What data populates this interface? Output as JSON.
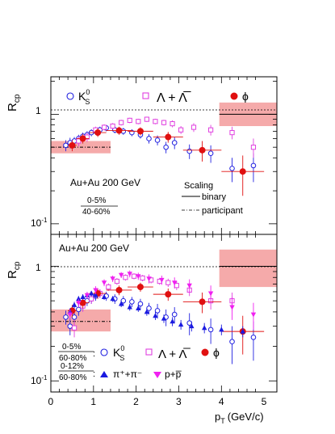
{
  "chart_data": [
    {
      "type": "scatter",
      "ylabel": "R",
      "ylabel_sub": "cp",
      "y_scale": "log",
      "ylim": [
        0.08,
        2.2
      ],
      "xlim": [
        0,
        5.3
      ],
      "y_tick_labels": [
        {
          "value": 1,
          "base": "1",
          "exp": ""
        },
        {
          "value": 0.1,
          "base": "10",
          "exp": "-1"
        }
      ],
      "system_label": "Au+Au 200 GeV",
      "centrality_label": {
        "num": "0-5%",
        "den": "40-60%"
      },
      "legend": [
        {
          "symbol": "circle-open",
          "color": "#2020e0",
          "label": "K",
          "sup": "0",
          "sub": "S"
        },
        {
          "symbol": "square-open",
          "color": "#e040e0",
          "label": "Λ + Λ̅"
        },
        {
          "symbol": "circle-filled",
          "color": "#e01010",
          "label": "ϕ"
        }
      ],
      "scaling_legend": {
        "title": "Scaling",
        "entries": [
          {
            "style": "solid",
            "label": "binary"
          },
          {
            "style": "dashdot",
            "label": "participant"
          }
        ]
      },
      "scaling_bands": [
        {
          "x": [
            0.0,
            1.4
          ],
          "y_low": 0.44,
          "y_high": 0.57,
          "line_y": 0.5,
          "style": "dashdot",
          "color": "#f5aaaa"
        },
        {
          "x": [
            3.95,
            5.3
          ],
          "y_low": 0.78,
          "y_high": 1.28,
          "line_y": 1.0,
          "style": "solid",
          "color": "#f5aaaa"
        }
      ],
      "series": [
        {
          "name": "K0S",
          "marker": "circle-open",
          "color": "#2020e0",
          "points": [
            {
              "x": 0.35,
              "y": 0.52,
              "err": 0.06
            },
            {
              "x": 0.45,
              "y": 0.55,
              "err": 0.06
            },
            {
              "x": 0.55,
              "y": 0.57,
              "err": 0.05
            },
            {
              "x": 0.65,
              "y": 0.6,
              "err": 0.05
            },
            {
              "x": 0.75,
              "y": 0.63,
              "err": 0.05
            },
            {
              "x": 0.85,
              "y": 0.65,
              "err": 0.05
            },
            {
              "x": 0.95,
              "y": 0.68,
              "err": 0.05
            },
            {
              "x": 1.05,
              "y": 0.7,
              "err": 0.05
            },
            {
              "x": 1.15,
              "y": 0.72,
              "err": 0.05
            },
            {
              "x": 1.3,
              "y": 0.75,
              "err": 0.05
            },
            {
              "x": 1.5,
              "y": 0.72,
              "err": 0.05
            },
            {
              "x": 1.7,
              "y": 0.7,
              "err": 0.05
            },
            {
              "x": 1.9,
              "y": 0.68,
              "err": 0.05
            },
            {
              "x": 2.1,
              "y": 0.65,
              "err": 0.05
            },
            {
              "x": 2.3,
              "y": 0.6,
              "err": 0.06
            },
            {
              "x": 2.5,
              "y": 0.58,
              "err": 0.06
            },
            {
              "x": 2.7,
              "y": 0.5,
              "err": 0.06
            },
            {
              "x": 2.9,
              "y": 0.55,
              "err": 0.07
            },
            {
              "x": 3.25,
              "y": 0.46,
              "err": 0.07
            },
            {
              "x": 3.75,
              "y": 0.44,
              "err": 0.08
            },
            {
              "x": 4.25,
              "y": 0.32,
              "err": 0.08
            },
            {
              "x": 4.75,
              "y": 0.34,
              "err": 0.1
            }
          ]
        },
        {
          "name": "Lambda",
          "marker": "square-open",
          "color": "#e040e0",
          "points": [
            {
              "x": 0.65,
              "y": 0.57,
              "err": 0.06
            },
            {
              "x": 0.85,
              "y": 0.62,
              "err": 0.06
            },
            {
              "x": 1.05,
              "y": 0.72,
              "err": 0.05
            },
            {
              "x": 1.25,
              "y": 0.76,
              "err": 0.05
            },
            {
              "x": 1.45,
              "y": 0.78,
              "err": 0.05
            },
            {
              "x": 1.65,
              "y": 0.84,
              "err": 0.05
            },
            {
              "x": 1.85,
              "y": 0.88,
              "err": 0.05
            },
            {
              "x": 2.05,
              "y": 0.86,
              "err": 0.05
            },
            {
              "x": 2.25,
              "y": 0.9,
              "err": 0.05
            },
            {
              "x": 2.45,
              "y": 0.86,
              "err": 0.05
            },
            {
              "x": 2.65,
              "y": 0.84,
              "err": 0.05
            },
            {
              "x": 2.85,
              "y": 0.82,
              "err": 0.06
            },
            {
              "x": 3.05,
              "y": 0.72,
              "err": 0.06
            },
            {
              "x": 3.35,
              "y": 0.76,
              "err": 0.07
            },
            {
              "x": 3.75,
              "y": 0.72,
              "err": 0.08
            },
            {
              "x": 4.25,
              "y": 0.68,
              "err": 0.09
            },
            {
              "x": 4.75,
              "y": 0.5,
              "err": 0.1
            }
          ]
        },
        {
          "name": "phi",
          "marker": "circle-filled",
          "color": "#e01010",
          "points": [
            {
              "x": 0.5,
              "y": 0.52,
              "xerr": 0.1,
              "err": 0.06
            },
            {
              "x": 0.75,
              "y": 0.6,
              "xerr": 0.15,
              "err": 0.06
            },
            {
              "x": 1.1,
              "y": 0.68,
              "xerr": 0.2,
              "err": 0.06
            },
            {
              "x": 1.6,
              "y": 0.71,
              "xerr": 0.3,
              "err": 0.06
            },
            {
              "x": 2.1,
              "y": 0.7,
              "xerr": 0.3,
              "err": 0.06
            },
            {
              "x": 2.75,
              "y": 0.62,
              "xerr": 0.35,
              "err": 0.07
            },
            {
              "x": 3.55,
              "y": 0.47,
              "xerr": 0.45,
              "err": 0.1
            },
            {
              "x": 4.5,
              "y": 0.3,
              "xerr": 0.5,
              "err": 0.12
            }
          ]
        }
      ]
    },
    {
      "type": "scatter",
      "xlabel": "p",
      "xlabel_sub": "T",
      "xlabel_unit": "(GeV/c)",
      "ylabel": "R",
      "ylabel_sub": "cp",
      "y_scale": "log",
      "ylim": [
        0.08,
        1.9
      ],
      "xlim": [
        0,
        5.3
      ],
      "x_ticks": [
        0,
        1,
        2,
        3,
        4,
        5
      ],
      "y_tick_labels": [
        {
          "value": 1,
          "base": "1",
          "exp": ""
        },
        {
          "value": 0.1,
          "base": "10",
          "exp": "-1"
        }
      ],
      "system_label": "Au+Au 200 GeV",
      "legend_rows": [
        {
          "centrality": {
            "num": "0-5%",
            "den": "60-80%"
          },
          "entries": [
            {
              "symbol": "circle-open",
              "color": "#2020e0",
              "label": "K",
              "sup": "0",
              "sub": "S"
            },
            {
              "symbol": "square-open",
              "color": "#e040e0",
              "label": "Λ + Λ̅"
            },
            {
              "symbol": "circle-filled",
              "color": "#e01010",
              "label": "ϕ"
            }
          ]
        },
        {
          "centrality": {
            "num": "0-12%",
            "den": "60-80%"
          },
          "entries": [
            {
              "symbol": "triangle-up",
              "color": "#1a1ae0",
              "label": "π⁺+π⁻"
            },
            {
              "symbol": "triangle-down",
              "color": "#f020f0",
              "label": "p+p̅"
            }
          ]
        }
      ],
      "scaling_bands": [
        {
          "x": [
            0.0,
            1.4
          ],
          "y_low": 0.27,
          "y_high": 0.42,
          "line_y": 0.33,
          "style": "dashdot",
          "color": "#f5aaaa"
        },
        {
          "x": [
            3.95,
            5.3
          ],
          "y_low": 0.66,
          "y_high": 1.4,
          "line_y": 1.0,
          "style": "solid",
          "color": "#f5aaaa"
        }
      ],
      "series": [
        {
          "name": "K0S",
          "marker": "circle-open",
          "color": "#2020e0",
          "points": [
            {
              "x": 0.35,
              "y": 0.36,
              "err": 0.05
            },
            {
              "x": 0.45,
              "y": 0.3,
              "err": 0.05
            },
            {
              "x": 0.55,
              "y": 0.36,
              "err": 0.05
            },
            {
              "x": 0.65,
              "y": 0.42,
              "err": 0.05
            },
            {
              "x": 0.75,
              "y": 0.46,
              "err": 0.05
            },
            {
              "x": 0.85,
              "y": 0.5,
              "err": 0.05
            },
            {
              "x": 0.95,
              "y": 0.52,
              "err": 0.05
            },
            {
              "x": 1.05,
              "y": 0.55,
              "err": 0.05
            },
            {
              "x": 1.15,
              "y": 0.58,
              "err": 0.05
            },
            {
              "x": 1.3,
              "y": 0.55,
              "err": 0.05
            },
            {
              "x": 1.5,
              "y": 0.52,
              "err": 0.05
            },
            {
              "x": 1.7,
              "y": 0.5,
              "err": 0.05
            },
            {
              "x": 1.9,
              "y": 0.49,
              "err": 0.05
            },
            {
              "x": 2.1,
              "y": 0.47,
              "err": 0.05
            },
            {
              "x": 2.3,
              "y": 0.43,
              "err": 0.05
            },
            {
              "x": 2.5,
              "y": 0.41,
              "err": 0.06
            },
            {
              "x": 2.7,
              "y": 0.36,
              "err": 0.06
            },
            {
              "x": 2.9,
              "y": 0.38,
              "err": 0.06
            },
            {
              "x": 3.25,
              "y": 0.32,
              "err": 0.07
            },
            {
              "x": 3.75,
              "y": 0.28,
              "err": 0.07
            },
            {
              "x": 4.25,
              "y": 0.22,
              "err": 0.08
            },
            {
              "x": 4.75,
              "y": 0.24,
              "err": 0.09
            }
          ]
        },
        {
          "name": "Lambda",
          "marker": "square-open",
          "color": "#e040e0",
          "points": [
            {
              "x": 0.55,
              "y": 0.29,
              "err": 0.05
            },
            {
              "x": 0.75,
              "y": 0.45,
              "err": 0.05
            },
            {
              "x": 0.95,
              "y": 0.52,
              "err": 0.05
            },
            {
              "x": 1.15,
              "y": 0.58,
              "err": 0.05
            },
            {
              "x": 1.35,
              "y": 0.66,
              "err": 0.05
            },
            {
              "x": 1.55,
              "y": 0.74,
              "err": 0.05
            },
            {
              "x": 1.75,
              "y": 0.8,
              "err": 0.05
            },
            {
              "x": 1.95,
              "y": 0.82,
              "err": 0.05
            },
            {
              "x": 2.15,
              "y": 0.79,
              "err": 0.05
            },
            {
              "x": 2.35,
              "y": 0.76,
              "err": 0.05
            },
            {
              "x": 2.55,
              "y": 0.74,
              "err": 0.05
            },
            {
              "x": 2.75,
              "y": 0.72,
              "err": 0.06
            },
            {
              "x": 2.95,
              "y": 0.68,
              "err": 0.06
            },
            {
              "x": 3.25,
              "y": 0.62,
              "err": 0.07
            },
            {
              "x": 3.75,
              "y": 0.5,
              "err": 0.08
            },
            {
              "x": 4.25,
              "y": 0.5,
              "err": 0.09
            }
          ]
        },
        {
          "name": "phi",
          "marker": "circle-filled",
          "color": "#e01010",
          "points": [
            {
              "x": 0.5,
              "y": 0.41,
              "xerr": 0.1,
              "err": 0.05
            },
            {
              "x": 0.75,
              "y": 0.48,
              "xerr": 0.15,
              "err": 0.05
            },
            {
              "x": 1.1,
              "y": 0.58,
              "xerr": 0.2,
              "err": 0.06
            },
            {
              "x": 1.6,
              "y": 0.62,
              "xerr": 0.3,
              "err": 0.06
            },
            {
              "x": 2.1,
              "y": 0.66,
              "xerr": 0.3,
              "err": 0.06
            },
            {
              "x": 2.75,
              "y": 0.57,
              "xerr": 0.35,
              "err": 0.07
            },
            {
              "x": 3.55,
              "y": 0.49,
              "xerr": 0.45,
              "err": 0.1
            },
            {
              "x": 4.5,
              "y": 0.27,
              "xerr": 0.5,
              "err": 0.1
            }
          ]
        },
        {
          "name": "pi",
          "marker": "triangle-up",
          "color": "#1a1ae0",
          "points": [
            {
              "x": 0.45,
              "y": 0.4,
              "err": 0.03
            },
            {
              "x": 0.55,
              "y": 0.46,
              "err": 0.03
            },
            {
              "x": 0.65,
              "y": 0.52,
              "err": 0.03
            },
            {
              "x": 0.75,
              "y": 0.54,
              "err": 0.03
            },
            {
              "x": 0.85,
              "y": 0.56,
              "err": 0.03
            },
            {
              "x": 0.95,
              "y": 0.58,
              "err": 0.03
            },
            {
              "x": 1.05,
              "y": 0.56,
              "err": 0.03
            },
            {
              "x": 1.25,
              "y": 0.54,
              "err": 0.03
            },
            {
              "x": 1.45,
              "y": 0.52,
              "err": 0.03
            },
            {
              "x": 1.65,
              "y": 0.47,
              "err": 0.03
            },
            {
              "x": 1.85,
              "y": 0.44,
              "err": 0.03
            },
            {
              "x": 2.05,
              "y": 0.43,
              "err": 0.03
            },
            {
              "x": 2.25,
              "y": 0.4,
              "err": 0.03
            },
            {
              "x": 2.45,
              "y": 0.37,
              "err": 0.03
            },
            {
              "x": 2.65,
              "y": 0.35,
              "err": 0.03
            },
            {
              "x": 2.85,
              "y": 0.33,
              "err": 0.03
            },
            {
              "x": 3.05,
              "y": 0.31,
              "err": 0.03
            },
            {
              "x": 3.3,
              "y": 0.3,
              "err": 0.03
            },
            {
              "x": 3.6,
              "y": 0.29,
              "err": 0.03
            },
            {
              "x": 4.0,
              "y": 0.28,
              "err": 0.03
            },
            {
              "x": 4.5,
              "y": 0.27,
              "err": 0.03
            }
          ]
        },
        {
          "name": "p",
          "marker": "triangle-down",
          "color": "#f020f0",
          "points": [
            {
              "x": 0.45,
              "y": 0.38,
              "err": 0.04
            },
            {
              "x": 0.65,
              "y": 0.48,
              "err": 0.04
            },
            {
              "x": 0.85,
              "y": 0.56,
              "err": 0.04
            },
            {
              "x": 1.05,
              "y": 0.62,
              "err": 0.05
            },
            {
              "x": 1.25,
              "y": 0.72,
              "err": 0.05
            },
            {
              "x": 1.45,
              "y": 0.78,
              "err": 0.05
            },
            {
              "x": 1.65,
              "y": 0.84,
              "err": 0.05
            },
            {
              "x": 1.85,
              "y": 0.86,
              "err": 0.06
            },
            {
              "x": 2.05,
              "y": 0.82,
              "err": 0.06
            },
            {
              "x": 2.3,
              "y": 0.78,
              "err": 0.07
            },
            {
              "x": 2.6,
              "y": 0.76,
              "err": 0.07
            },
            {
              "x": 2.9,
              "y": 0.72,
              "err": 0.08
            },
            {
              "x": 3.25,
              "y": 0.68,
              "err": 0.09
            },
            {
              "x": 3.75,
              "y": 0.58,
              "err": 0.1
            },
            {
              "x": 4.25,
              "y": 0.44,
              "err": 0.1
            },
            {
              "x": 4.75,
              "y": 0.38,
              "err": 0.1
            }
          ]
        }
      ]
    }
  ]
}
